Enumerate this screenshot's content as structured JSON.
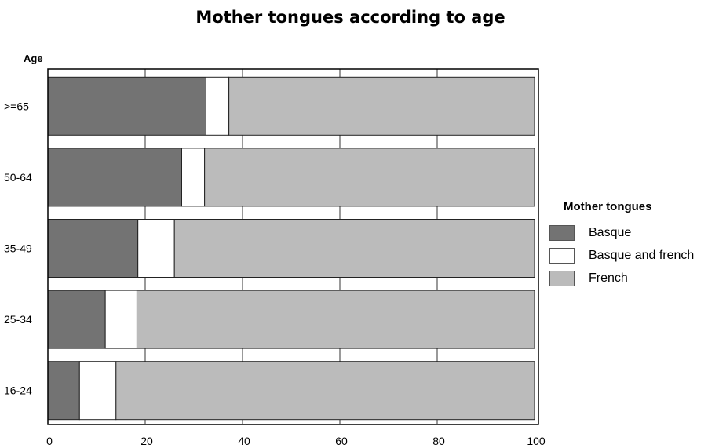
{
  "chart_data": {
    "type": "bar",
    "orientation": "horizontal",
    "stacked": true,
    "title": "Mother tongues according to age",
    "ylabel": "Age",
    "xlabel": "",
    "categories": [
      ">=65",
      "50-64",
      "35-49",
      "25-34",
      "16-24"
    ],
    "series": [
      {
        "name": "Basque",
        "color": "#737373",
        "values": [
          32.5,
          27.5,
          18.5,
          11.8,
          6.5
        ]
      },
      {
        "name": "Basque and french",
        "color": "#ffffff",
        "values": [
          4.7,
          4.7,
          7.5,
          6.5,
          7.5
        ]
      },
      {
        "name": "French",
        "color": "#bbbbbb",
        "values": [
          62.8,
          67.8,
          74.0,
          81.7,
          86.0
        ]
      }
    ],
    "xlim": [
      0,
      100
    ],
    "xticks": [
      0,
      20,
      40,
      60,
      80,
      100
    ],
    "grid": "vertical",
    "legend_title": "Mother tongues",
    "legend_position": "right"
  }
}
